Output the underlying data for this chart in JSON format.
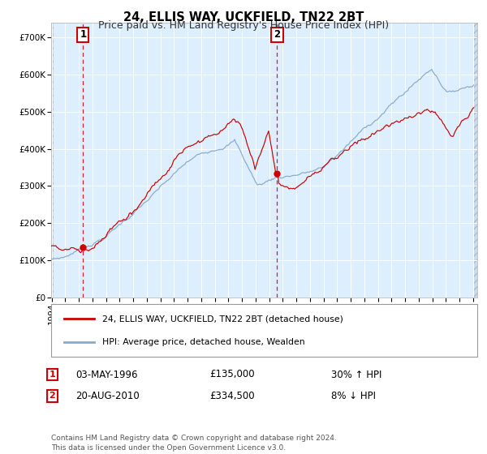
{
  "title": "24, ELLIS WAY, UCKFIELD, TN22 2BT",
  "subtitle": "Price paid vs. HM Land Registry's House Price Index (HPI)",
  "legend_line1": "24, ELLIS WAY, UCKFIELD, TN22 2BT (detached house)",
  "legend_line2": "HPI: Average price, detached house, Wealden",
  "annotation1_label": "1",
  "annotation1_date": "03-MAY-1996",
  "annotation1_price": "£135,000",
  "annotation1_hpi": "30% ↑ HPI",
  "annotation1_year": 1996.35,
  "annotation1_value": 135000,
  "annotation2_label": "2",
  "annotation2_date": "20-AUG-2010",
  "annotation2_price": "£334,500",
  "annotation2_hpi": "8% ↓ HPI",
  "annotation2_year": 2010.63,
  "annotation2_value": 334500,
  "ylabel_ticks": [
    "£0",
    "£100K",
    "£200K",
    "£300K",
    "£400K",
    "£500K",
    "£600K",
    "£700K"
  ],
  "ytick_vals": [
    0,
    100000,
    200000,
    300000,
    400000,
    500000,
    600000,
    700000
  ],
  "ylim": [
    0,
    740000
  ],
  "copyright_text": "Contains HM Land Registry data © Crown copyright and database right 2024.\nThis data is licensed under the Open Government Licence v3.0.",
  "line_red_color": "#cc0000",
  "line_blue_color": "#88aacc",
  "bg_plot_color": "#ddeeff",
  "grid_color": "#ffffff",
  "dashed_line_color": "#cc0000",
  "box_color": "#cc0000",
  "title_fontsize": 10.5,
  "subtitle_fontsize": 9,
  "tick_fontsize": 7.5
}
